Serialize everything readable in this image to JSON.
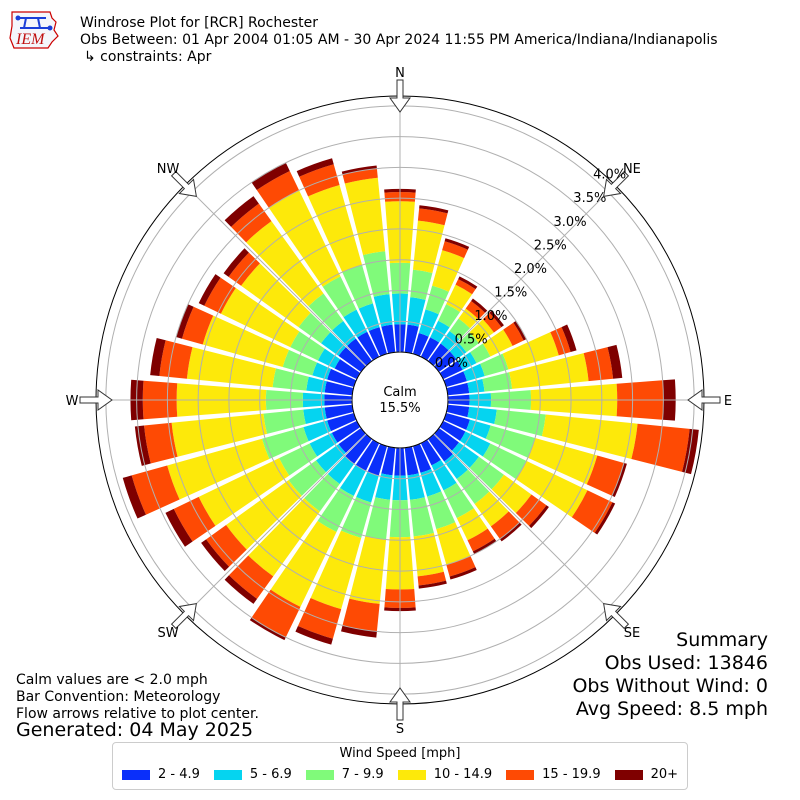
{
  "header": {
    "title": "Windrose Plot for [RCR] Rochester",
    "obs_between": "Obs Between: 01 Apr 2004 01:05 AM - 30 Apr 2024 11:55 PM America/Indiana/Indianapolis",
    "constraints": "↳ constraints: Apr"
  },
  "logo": {
    "text": "IEM"
  },
  "notes": {
    "calm_values": "Calm values are < 2.0 mph",
    "bar_convention": "Bar Convention: Meteorology",
    "flow_arrows": "Flow arrows relative to plot center.",
    "generated": "Generated: 04 May 2025"
  },
  "summary": {
    "title": "Summary",
    "obs_used": "Obs Used: 13846",
    "obs_without_wind": "Obs Without Wind: 0",
    "avg_speed": "Avg Speed: 8.5 mph"
  },
  "chart_data": {
    "type": "windrose",
    "center_label": "Calm",
    "calm_percent": "15.5%",
    "radial_ticks": [
      "0.0%",
      "0.5%",
      "1.0%",
      "1.5%",
      "2.0%",
      "2.5%",
      "3.0%",
      "3.5%",
      "4.0%"
    ],
    "radial_max": 4.0,
    "compass_labels": [
      {
        "label": "N",
        "angle": 0
      },
      {
        "label": "NE",
        "angle": 45
      },
      {
        "label": "E",
        "angle": 90
      },
      {
        "label": "SE",
        "angle": 135
      },
      {
        "label": "S",
        "angle": 180
      },
      {
        "label": "SW",
        "angle": 225
      },
      {
        "label": "W",
        "angle": 270
      },
      {
        "label": "NW",
        "angle": 315
      }
    ],
    "legend_title": "Wind Speed [mph]",
    "bins": [
      {
        "label": "2 - 4.9",
        "color": "#0a2ffa"
      },
      {
        "label": "5 - 6.9",
        "color": "#05d4f0"
      },
      {
        "label": "7 - 9.9",
        "color": "#80fa7a"
      },
      {
        "label": "10 - 14.9",
        "color": "#fde90a"
      },
      {
        "label": "15 - 19.9",
        "color": "#fe4a04"
      },
      {
        "label": "20+",
        "color": "#7f0000"
      }
    ],
    "directions": [
      0,
      10,
      20,
      30,
      40,
      50,
      60,
      70,
      80,
      90,
      100,
      110,
      120,
      130,
      140,
      150,
      160,
      170,
      180,
      190,
      200,
      210,
      220,
      230,
      240,
      250,
      260,
      270,
      280,
      290,
      300,
      310,
      320,
      330,
      340,
      350
    ],
    "cumulative_percent": [
      [
        0.45,
        0.95,
        1.45,
        2.45,
        2.6,
        2.65
      ],
      [
        0.45,
        0.9,
        1.35,
        2.15,
        2.35,
        2.4
      ],
      [
        0.35,
        0.75,
        1.15,
        1.75,
        1.9,
        1.95
      ],
      [
        0.35,
        0.65,
        0.95,
        1.3,
        1.4,
        1.45
      ],
      [
        0.35,
        0.6,
        0.85,
        1.05,
        1.2,
        1.25
      ],
      [
        0.35,
        0.55,
        0.8,
        1.1,
        1.25,
        1.3
      ],
      [
        0.35,
        0.6,
        0.85,
        1.25,
        1.45,
        1.5
      ],
      [
        0.35,
        0.65,
        1.05,
        1.9,
        2.1,
        2.2
      ],
      [
        0.35,
        0.6,
        1.05,
        2.3,
        2.7,
        2.85
      ],
      [
        0.35,
        0.7,
        1.35,
        2.75,
        3.5,
        3.7
      ],
      [
        0.35,
        0.8,
        1.6,
        3.1,
        3.95,
        4.1
      ],
      [
        0.4,
        0.75,
        1.5,
        2.55,
        3.0,
        3.05
      ],
      [
        0.4,
        0.85,
        1.5,
        2.6,
        3.05,
        3.1
      ],
      [
        0.4,
        0.8,
        1.3,
        1.85,
        2.15,
        2.2
      ],
      [
        0.45,
        0.8,
        1.3,
        1.75,
        2.0,
        2.05
      ],
      [
        0.4,
        0.85,
        1.35,
        1.75,
        1.95,
        2.0
      ],
      [
        0.45,
        0.85,
        1.4,
        2.0,
        2.2,
        2.25
      ],
      [
        0.45,
        0.85,
        1.45,
        2.1,
        2.25,
        2.3
      ],
      [
        0.45,
        0.85,
        1.45,
        2.3,
        2.6,
        2.65
      ],
      [
        0.45,
        0.85,
        1.5,
        2.55,
        3.0,
        3.1
      ],
      [
        0.5,
        0.95,
        1.55,
        2.75,
        3.25,
        3.35
      ],
      [
        0.5,
        0.95,
        1.6,
        2.95,
        3.5,
        3.55
      ],
      [
        0.5,
        0.9,
        1.45,
        2.75,
        3.2,
        3.3
      ],
      [
        0.45,
        0.9,
        1.45,
        2.7,
        3.1,
        3.2
      ],
      [
        0.45,
        0.85,
        1.4,
        2.85,
        3.3,
        3.45
      ],
      [
        0.45,
        0.85,
        1.55,
        3.15,
        3.75,
        3.9
      ],
      [
        0.45,
        0.8,
        1.45,
        2.95,
        3.4,
        3.55
      ],
      [
        0.45,
        0.8,
        1.4,
        2.85,
        3.4,
        3.6
      ],
      [
        0.45,
        0.75,
        1.3,
        2.7,
        3.15,
        3.3
      ],
      [
        0.45,
        0.7,
        1.2,
        2.55,
        2.9,
        3.0
      ],
      [
        0.4,
        0.7,
        1.2,
        2.45,
        2.75,
        2.85
      ],
      [
        0.45,
        0.8,
        1.25,
        2.4,
        2.65,
        2.75
      ],
      [
        0.45,
        0.8,
        1.35,
        2.8,
        3.15,
        3.3
      ],
      [
        0.45,
        0.85,
        1.45,
        3.0,
        3.35,
        3.5
      ],
      [
        0.45,
        0.85,
        1.5,
        2.85,
        3.2,
        3.3
      ],
      [
        0.45,
        0.95,
        1.65,
        2.85,
        3.0,
        3.05
      ]
    ]
  }
}
